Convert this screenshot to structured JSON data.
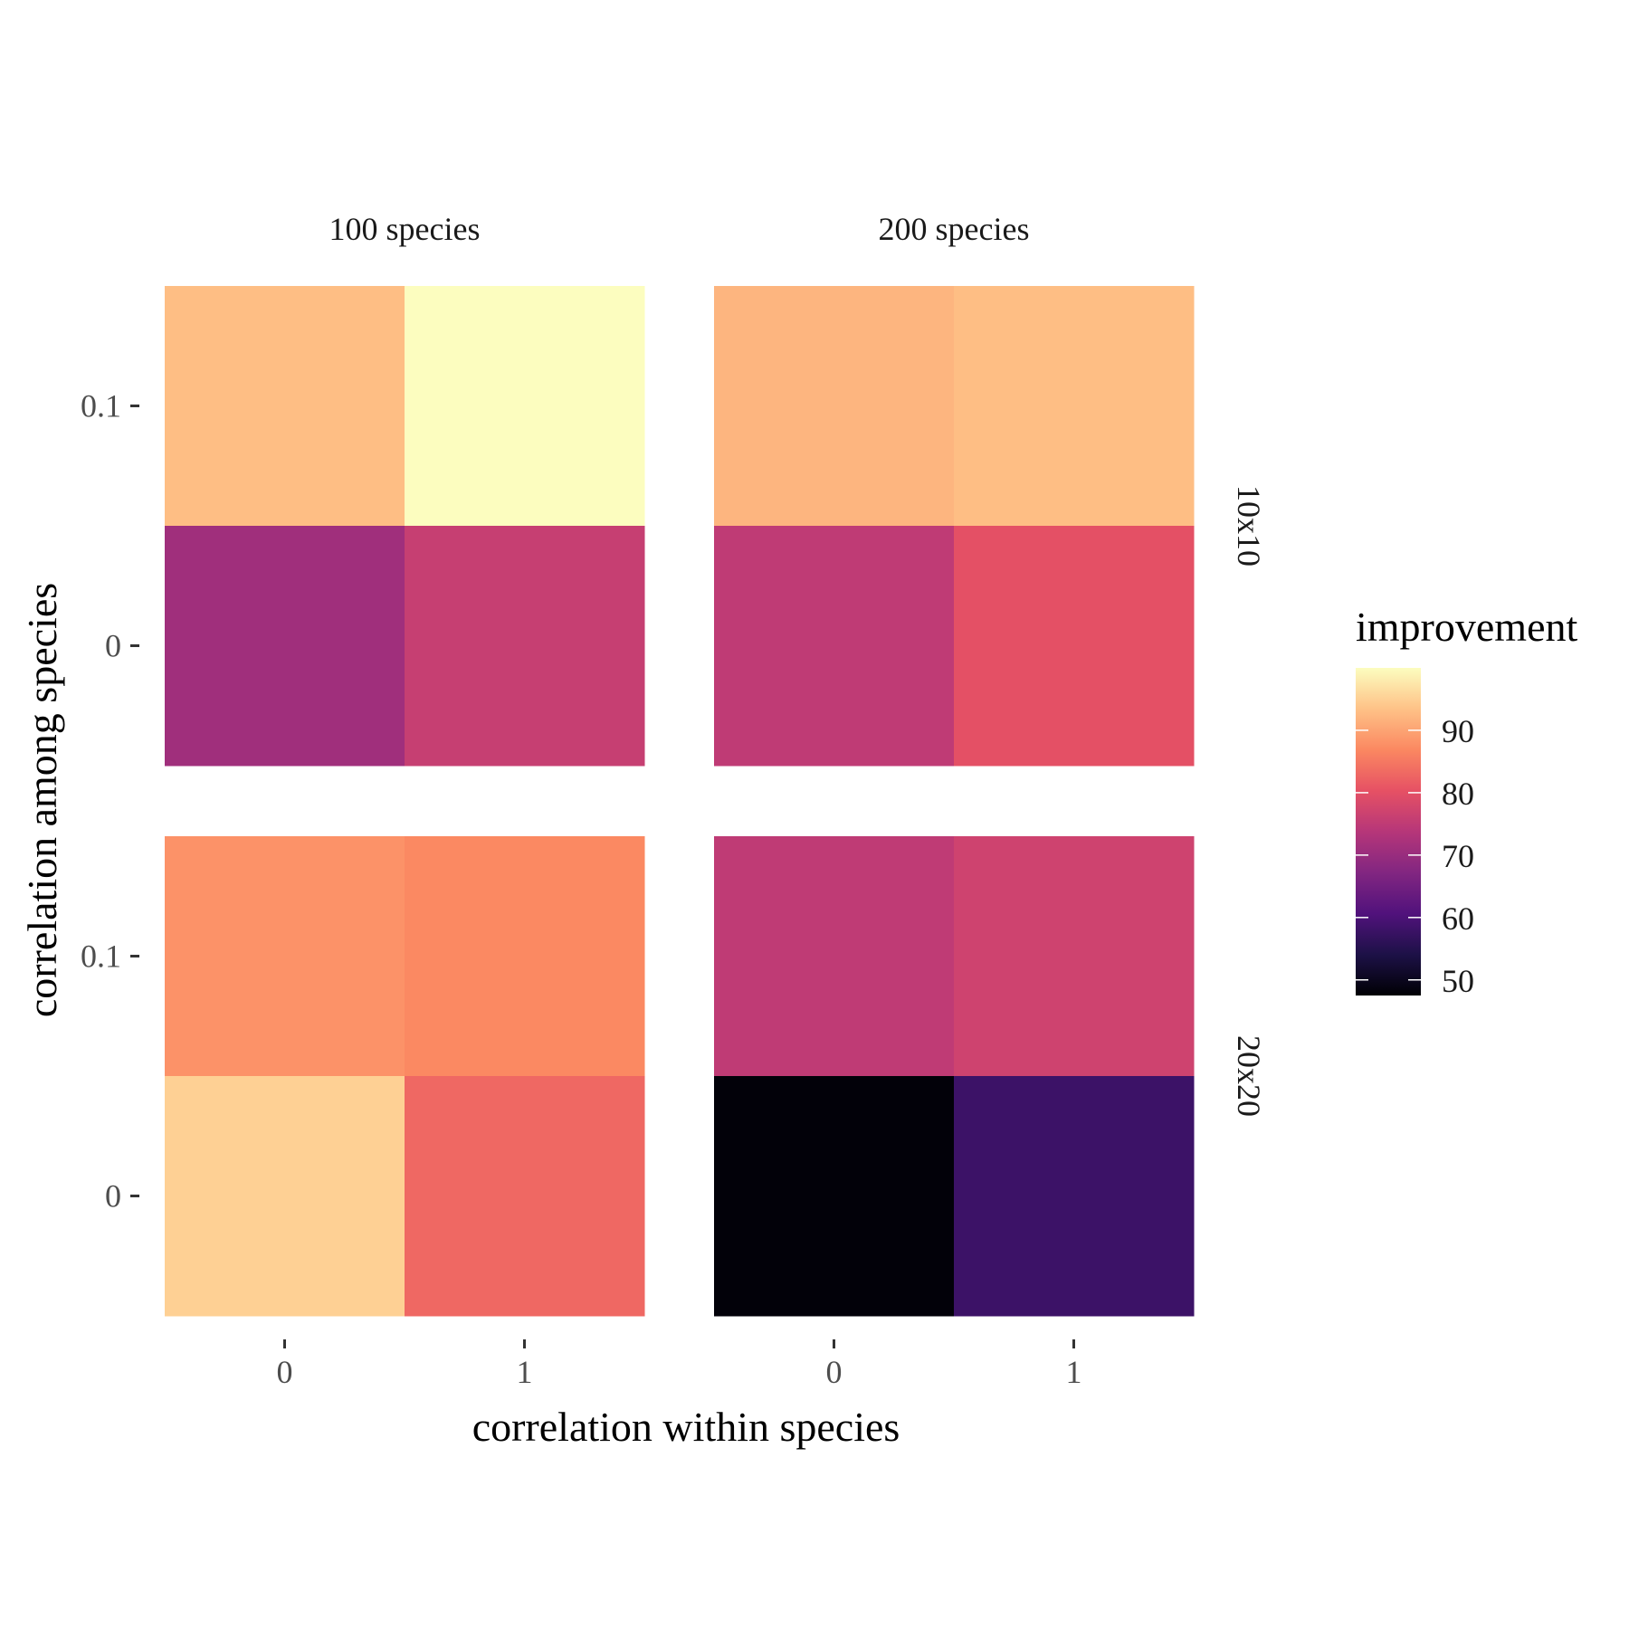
{
  "chart_data": {
    "type": "heatmap",
    "xlabel": "correlation within species",
    "ylabel": "correlation among species",
    "x_categories": [
      "0",
      "1"
    ],
    "y_categories": [
      "0",
      "0.1"
    ],
    "column_facets": [
      "100 species",
      "200 species"
    ],
    "row_facets": [
      "10x10",
      "20x20"
    ],
    "cells": [
      {
        "col_facet": "100 species",
        "row_facet": "10x10",
        "x": "0",
        "y": "0.1",
        "value": 93
      },
      {
        "col_facet": "100 species",
        "row_facet": "10x10",
        "x": "1",
        "y": "0.1",
        "value": 100
      },
      {
        "col_facet": "100 species",
        "row_facet": "10x10",
        "x": "0",
        "y": "0",
        "value": 71
      },
      {
        "col_facet": "100 species",
        "row_facet": "10x10",
        "x": "1",
        "y": "0",
        "value": 76
      },
      {
        "col_facet": "200 species",
        "row_facet": "10x10",
        "x": "0",
        "y": "0.1",
        "value": 92
      },
      {
        "col_facet": "200 species",
        "row_facet": "10x10",
        "x": "1",
        "y": "0.1",
        "value": 93
      },
      {
        "col_facet": "200 species",
        "row_facet": "10x10",
        "x": "0",
        "y": "0",
        "value": 75
      },
      {
        "col_facet": "200 species",
        "row_facet": "10x10",
        "x": "1",
        "y": "0",
        "value": 80
      },
      {
        "col_facet": "100 species",
        "row_facet": "20x20",
        "x": "0",
        "y": "0.1",
        "value": 88
      },
      {
        "col_facet": "100 species",
        "row_facet": "20x20",
        "x": "1",
        "y": "0.1",
        "value": 87
      },
      {
        "col_facet": "100 species",
        "row_facet": "20x20",
        "x": "0",
        "y": "0",
        "value": 95
      },
      {
        "col_facet": "100 species",
        "row_facet": "20x20",
        "x": "1",
        "y": "0",
        "value": 83
      },
      {
        "col_facet": "200 species",
        "row_facet": "20x20",
        "x": "0",
        "y": "0.1",
        "value": 75
      },
      {
        "col_facet": "200 species",
        "row_facet": "20x20",
        "x": "1",
        "y": "0.1",
        "value": 77
      },
      {
        "col_facet": "200 species",
        "row_facet": "20x20",
        "x": "0",
        "y": "0",
        "value": 48
      },
      {
        "col_facet": "200 species",
        "row_facet": "20x20",
        "x": "1",
        "y": "0",
        "value": 58
      }
    ],
    "legend": {
      "title": "improvement",
      "breaks": [
        50,
        60,
        70,
        80,
        90
      ],
      "range": [
        47.5,
        100
      ],
      "position": "right"
    },
    "color_scale": [
      "#000004",
      "#1d1147",
      "#51127c",
      "#822681",
      "#b63679",
      "#e65164",
      "#fb8861",
      "#fec287",
      "#fcfdbf"
    ],
    "grid": false
  }
}
